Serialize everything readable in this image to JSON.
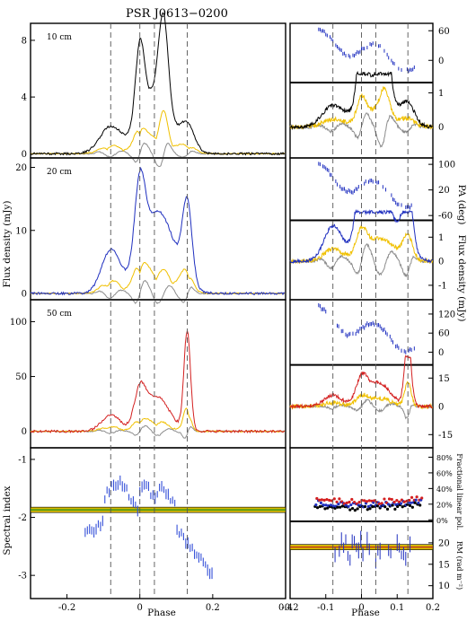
{
  "chart_data": {
    "type": "line",
    "title": "PSR J0613−0200",
    "xlabel_left": "Phase",
    "xlabel_right": "Phase",
    "ylabel_flux": "Flux density (mJy)",
    "ylabel_si": "Spectral index",
    "ylabel_pa": "PA (deg)",
    "ylabel_flux_right": "Flux density (mJy)",
    "ylabel_lin": "Fractional linear pol.",
    "ylabel_rm": "RM (rad m⁻²)",
    "left_xlim": [
      -0.3,
      0.4
    ],
    "right_xlim": [
      -0.2,
      0.2
    ],
    "left_xticks": [
      "-0.2",
      "0",
      "0.2",
      "0.4"
    ],
    "right_xticks": [
      "-0.2",
      "-0.1",
      "0",
      "0.1",
      "0.2"
    ],
    "component_lines": [
      -0.08,
      0.0,
      0.04,
      0.13
    ],
    "colors": {
      "10cm": "#000000",
      "20cm": "#1f2fbf",
      "50cm": "#d42020",
      "linear": "#f0c000",
      "circular": "#8c8c8c",
      "pa": "#1f2fbf",
      "si": "#3550d8"
    },
    "panels": [
      {
        "band": "10 cm",
        "ylim": [
          -0.3,
          9.2
        ],
        "yticks": [
          "0",
          "4",
          "8"
        ],
        "components": [
          {
            "x": -0.08,
            "amp": 1.9,
            "w": 0.03
          },
          {
            "x": 0.0,
            "amp": 5.4,
            "w": 0.012
          },
          {
            "x": 0.04,
            "amp": 4.3,
            "w": 0.04
          },
          {
            "x": 0.065,
            "amp": 6.4,
            "w": 0.013
          },
          {
            "x": 0.13,
            "amp": 1.9,
            "w": 0.02
          }
        ],
        "right": {
          "pa_ylim": [
            -45,
            75
          ],
          "pa_yticks": [
            "60",
            "0"
          ],
          "flux_ylim": [
            -0.9,
            1.3
          ],
          "flux_yticks": [
            "1",
            "0"
          ]
        }
      },
      {
        "band": "20 cm",
        "ylim": [
          -1,
          21.5
        ],
        "yticks": [
          "0",
          "10",
          "20"
        ],
        "components": [
          {
            "x": -0.08,
            "amp": 6.8,
            "w": 0.025
          },
          {
            "x": 0.0,
            "amp": 12.5,
            "w": 0.014
          },
          {
            "x": 0.05,
            "amp": 13,
            "w": 0.045
          },
          {
            "x": 0.13,
            "amp": 12.5,
            "w": 0.013
          }
        ],
        "right": {
          "pa_ylim": [
            -75,
            120
          ],
          "pa_yticks": [
            "100",
            "20",
            "-60"
          ],
          "flux_ylim": [
            -1.6,
            1.7
          ],
          "flux_yticks": [
            "1",
            "0",
            "-1"
          ]
        }
      },
      {
        "band": "50 cm",
        "ylim": [
          -15,
          120
        ],
        "yticks": [
          "0",
          "50",
          "100"
        ],
        "components": [
          {
            "x": -0.08,
            "amp": 15,
            "w": 0.025
          },
          {
            "x": 0.0,
            "amp": 30,
            "w": 0.015
          },
          {
            "x": 0.045,
            "amp": 32,
            "w": 0.035
          },
          {
            "x": 0.13,
            "amp": 90,
            "w": 0.009
          }
        ],
        "right": {
          "pa_ylim": [
            -40,
            165
          ],
          "pa_yticks": [
            "120",
            "60",
            "0"
          ],
          "flux_ylim": [
            -22,
            22
          ],
          "flux_yticks": [
            "15",
            "0",
            "-15"
          ]
        }
      }
    ],
    "spectral_index": {
      "ylim": [
        -3.4,
        -0.8
      ],
      "yticks": [
        "-1",
        "-2",
        "-3"
      ],
      "mean_line": -1.87
    },
    "linear_fraction": {
      "ylim": [
        -0.02,
        0.92
      ],
      "yticks": [
        "80%",
        "60%",
        "40%",
        "20%",
        "0%"
      ]
    },
    "rm": {
      "ylim": [
        7,
        25
      ],
      "yticks": [
        "20",
        "15",
        "10"
      ],
      "mean_line": 19
    }
  }
}
